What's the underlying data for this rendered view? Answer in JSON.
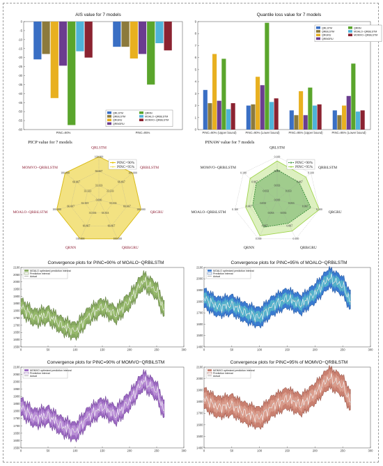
{
  "charts": {
    "ais": {
      "type": "bar",
      "title": "AIS value for 7 models",
      "categories": [
        "PINC=90%",
        "PINC=95%"
      ],
      "ylim": [
        -60,
        0
      ],
      "yticks": [
        "0",
        "-5",
        "-10",
        "-15",
        "-20",
        "-25",
        "-30",
        "-35",
        "-40",
        "-45",
        "-50",
        "-55",
        "-60"
      ],
      "legend": [
        "QRLSTM",
        "QRBiLSTM",
        "QRGRU",
        "QRBiGRU",
        "QRNN",
        "MOALO−QRBiLSTM",
        "MOMVO−QRBiLSTM"
      ],
      "colors": [
        "#3a6fc4",
        "#8c7a3c",
        "#e8b020",
        "#6b3d8f",
        "#5aa52c",
        "#4fb3d9",
        "#8b2331"
      ],
      "series": [
        {
          "name": "QRLSTM",
          "values": [
            -21,
            -14
          ]
        },
        {
          "name": "QRBiLSTM",
          "values": [
            -18,
            -14
          ]
        },
        {
          "name": "QRGRU",
          "values": [
            -42.5,
            -20.5
          ]
        },
        {
          "name": "QRBiGRU",
          "values": [
            -24.5,
            -18
          ]
        },
        {
          "name": "QRNN",
          "values": [
            -57.5,
            -35
          ]
        },
        {
          "name": "MOALO−QRBiLSTM",
          "values": [
            -16.5,
            -12
          ]
        },
        {
          "name": "MOMVO−QRBiLSTM",
          "values": [
            -20,
            -16
          ]
        }
      ]
    },
    "quantile": {
      "type": "bar",
      "title": "Quantile loss value for 7 models",
      "categories": [
        "PINC=90% (Upper bound)",
        "PINC=90% (Lower bound)",
        "PINC=95% (Upper bound)",
        "PINC=95% (Lower bound)"
      ],
      "ylim": [
        0,
        9
      ],
      "yticks": [
        "0",
        "1",
        "2",
        "3",
        "4",
        "5",
        "6",
        "7",
        "8",
        "9"
      ],
      "legend": [
        "QRLSTM",
        "QRBiLSTM",
        "QRGRU",
        "QRBiGRU",
        "QRNN",
        "MOALO−QRBiLSTM",
        "MOMVO−QRBiLSTM"
      ],
      "colors": [
        "#3a6fc4",
        "#8c7a3c",
        "#e8b020",
        "#6b3d8f",
        "#5aa52c",
        "#4fb3d9",
        "#8b2331"
      ],
      "series": [
        {
          "name": "QRLSTM",
          "values": [
            3.3,
            2.0,
            1.6,
            1.6
          ]
        },
        {
          "name": "QRBiLSTM",
          "values": [
            2.2,
            2.1,
            1.2,
            1.2
          ]
        },
        {
          "name": "QRGRU",
          "values": [
            6.3,
            4.4,
            3.2,
            2.0
          ]
        },
        {
          "name": "QRBiGRU",
          "values": [
            2.4,
            3.7,
            1.2,
            2.8
          ]
        },
        {
          "name": "QRNN",
          "values": [
            5.9,
            8.9,
            3.5,
            5.5
          ]
        },
        {
          "name": "MOALO−QRBiLSTM",
          "values": [
            1.7,
            2.3,
            2.0,
            1.5
          ]
        },
        {
          "name": "MOMVO−QRBiLSTM",
          "values": [
            2.2,
            2.6,
            2.1,
            1.6
          ]
        }
      ]
    },
    "picp": {
      "type": "radar",
      "title": "PICP value for 7 models",
      "axes": [
        "QRLSTM",
        "QRBiLSTM",
        "QRGRU",
        "QRBiGRU",
        "QRNN",
        "MOALO−QRBiLSTM",
        "MOMVO−QRBiLSTM"
      ],
      "ring_labels": [
        "0.000",
        "33.333",
        "66.667",
        "100.000"
      ],
      "range": [
        0,
        100
      ],
      "legend": [
        "PINC=90%",
        "PINC=95%"
      ],
      "colors": [
        "#e5c100",
        "#f0e060"
      ],
      "series": [
        {
          "name": "PINC=90%",
          "values": [
            100,
            100,
            100,
            100,
            100,
            100,
            100
          ]
        },
        {
          "name": "PINC=95%",
          "values": [
            100,
            100,
            100,
            100,
            100,
            100,
            100
          ]
        }
      ]
    },
    "pinaw": {
      "type": "radar",
      "title": "PINAW value for 7 models",
      "axes": [
        "QRLSTM",
        "QRBiLSTM",
        "QRGRU",
        "QRBiGRU",
        "QRNN",
        "MOALO−QRBiLSTM",
        "MOMVO−QRBiLSTM"
      ],
      "ring_labels": [
        "0.000",
        "0.033",
        "0.067",
        "0.100"
      ],
      "range": [
        0,
        0.1
      ],
      "legend": [
        "PINC=90%",
        "PINC=95%"
      ],
      "colors": [
        "#2f8a2f",
        "#9fd44a"
      ],
      "series": [
        {
          "name": "PINC=90%",
          "values": [
            0.07,
            0.065,
            0.08,
            0.06,
            0.07,
            0.058,
            0.062
          ]
        },
        {
          "name": "PINC=95%",
          "values": [
            0.09,
            0.085,
            0.1,
            0.08,
            0.092,
            0.075,
            0.08
          ]
        }
      ]
    },
    "conv": [
      {
        "type": "line",
        "title": "Convergence plots for PINC=90% of MOALO−QRBiLSTM",
        "legend": [
          "MOALO optimized prediction interval",
          "Prediction interval",
          "Actual"
        ],
        "fill": "#86a860",
        "fill_edge": "#5f7a40",
        "inner": "#9cc070",
        "half_width": 55,
        "xlim": [
          0,
          300
        ],
        "ylim": [
          1550,
          2100
        ],
        "xticks": [
          "0",
          "50",
          "100",
          "150",
          "200",
          "250",
          "300"
        ],
        "yticks": [
          "1550",
          "1600",
          "1650",
          "1700",
          "1750",
          "1800",
          "1850",
          "1900",
          "1950",
          "2000",
          "2050",
          "2100"
        ]
      },
      {
        "type": "line",
        "title": "Convergence plots for PINC=95% of MOALO−QRBiLSTM",
        "legend": [
          "MOALO optimized prediction interval",
          "Prediction interval",
          "Actual"
        ],
        "fill": "#3a7bd0",
        "fill_edge": "#1f4f9a",
        "inner": "#5fc8c8",
        "half_width": 85,
        "xlim": [
          0,
          300
        ],
        "ylim": [
          1400,
          2100
        ],
        "xticks": [
          "0",
          "50",
          "100",
          "150",
          "200",
          "250",
          "300"
        ],
        "yticks": [
          "1400",
          "1500",
          "1600",
          "1700",
          "1800",
          "1900",
          "2000",
          "2100"
        ]
      },
      {
        "type": "line",
        "title": "Convergence plots for PINC=90% of MOMVO−QRBiLSTM",
        "legend": [
          "MOMVO optimized prediction interval",
          "Prediction interval",
          "Actual"
        ],
        "fill": "#9a68c0",
        "fill_edge": "#6e3f95",
        "inner": "#c8a0e0",
        "half_width": 60,
        "xlim": [
          0,
          300
        ],
        "ylim": [
          1550,
          2100
        ],
        "xticks": [
          "0",
          "50",
          "100",
          "150",
          "200",
          "250",
          "300"
        ],
        "yticks": [
          "1550",
          "1600",
          "1650",
          "1700",
          "1750",
          "1800",
          "1850",
          "1900",
          "1950",
          "2000",
          "2050",
          "2100"
        ]
      },
      {
        "type": "line",
        "title": "Convergence plots for PINC=95% of MOMVO−QRBiLSTM",
        "legend": [
          "MOMVO optimized prediction interval",
          "Prediction interval",
          "Actual"
        ],
        "fill": "#c98070",
        "fill_edge": "#8f4a3e",
        "inner": "#e0a898",
        "half_width": 90,
        "xlim": [
          0,
          300
        ],
        "ylim": [
          1400,
          2100
        ],
        "xticks": [
          "0",
          "50",
          "100",
          "150",
          "200",
          "250",
          "300"
        ],
        "yticks": [
          "1400",
          "1500",
          "1600",
          "1700",
          "1800",
          "1900",
          "2000",
          "2100"
        ]
      }
    ]
  },
  "chart_data": [
    {
      "type": "bar",
      "title": "AIS value for 7 models",
      "categories": [
        "PINC=90%",
        "PINC=95%"
      ],
      "ylim": [
        -60,
        0
      ],
      "series": [
        {
          "name": "QRLSTM",
          "values": [
            -21,
            -14
          ]
        },
        {
          "name": "QRBiLSTM",
          "values": [
            -18,
            -14
          ]
        },
        {
          "name": "QRGRU",
          "values": [
            -42.5,
            -20.5
          ]
        },
        {
          "name": "QRBiGRU",
          "values": [
            -24.5,
            -18
          ]
        },
        {
          "name": "QRNN",
          "values": [
            -57.5,
            -35
          ]
        },
        {
          "name": "MOALO−QRBiLSTM",
          "values": [
            -16.5,
            -12
          ]
        },
        {
          "name": "MOMVO−QRBiLSTM",
          "values": [
            -20,
            -16
          ]
        }
      ]
    },
    {
      "type": "bar",
      "title": "Quantile loss value for 7 models",
      "categories": [
        "PINC=90% (Upper bound)",
        "PINC=90% (Lower bound)",
        "PINC=95% (Upper bound)",
        "PINC=95% (Lower bound)"
      ],
      "ylim": [
        0,
        9
      ],
      "series": [
        {
          "name": "QRLSTM",
          "values": [
            3.3,
            2.0,
            1.6,
            1.6
          ]
        },
        {
          "name": "QRBiLSTM",
          "values": [
            2.2,
            2.1,
            1.2,
            1.2
          ]
        },
        {
          "name": "QRGRU",
          "values": [
            6.3,
            4.4,
            3.2,
            2.0
          ]
        },
        {
          "name": "QRBiGRU",
          "values": [
            2.4,
            3.7,
            1.2,
            2.8
          ]
        },
        {
          "name": "QRNN",
          "values": [
            5.9,
            8.9,
            3.5,
            5.5
          ]
        },
        {
          "name": "MOALO−QRBiLSTM",
          "values": [
            1.7,
            2.3,
            2.0,
            1.5
          ]
        },
        {
          "name": "MOMVO−QRBiLSTM",
          "values": [
            2.2,
            2.6,
            2.1,
            1.6
          ]
        }
      ]
    },
    {
      "type": "radar",
      "title": "PICP value for 7 models",
      "axes": [
        "QRLSTM",
        "QRBiLSTM",
        "QRGRU",
        "QRBiGRU",
        "QRNN",
        "MOALO−QRBiLSTM",
        "MOMVO−QRBiLSTM"
      ],
      "series": [
        {
          "name": "PINC=90%",
          "values": [
            100,
            100,
            100,
            100,
            100,
            100,
            100
          ]
        },
        {
          "name": "PINC=95%",
          "values": [
            100,
            100,
            100,
            100,
            100,
            100,
            100
          ]
        }
      ]
    },
    {
      "type": "radar",
      "title": "PINAW value for 7 models",
      "axes": [
        "QRLSTM",
        "QRBiLSTM",
        "QRGRU",
        "QRBiGRU",
        "QRNN",
        "MOALO−QRBiLSTM",
        "MOMVO−QRBiLSTM"
      ],
      "series": [
        {
          "name": "PINC=90%",
          "values": [
            0.07,
            0.065,
            0.08,
            0.06,
            0.07,
            0.058,
            0.062
          ]
        },
        {
          "name": "PINC=95%",
          "values": [
            0.09,
            0.085,
            0.1,
            0.08,
            0.092,
            0.075,
            0.08
          ]
        }
      ]
    },
    {
      "type": "line",
      "title": "Convergence plots for PINC=90% of MOALO−QRBiLSTM",
      "xlim": [
        0,
        300
      ],
      "ylim": [
        1550,
        2100
      ],
      "series": [
        {
          "name": "Actual",
          "x": [
            0,
            25,
            50,
            75,
            100,
            125,
            150,
            175,
            200,
            225,
            250,
            265
          ],
          "y": [
            1830,
            1760,
            1780,
            1700,
            1650,
            1760,
            1830,
            1780,
            1880,
            2010,
            1930,
            1780
          ]
        }
      ]
    },
    {
      "type": "line",
      "title": "Convergence plots for PINC=95% of MOALO−QRBiLSTM",
      "xlim": [
        0,
        300
      ],
      "ylim": [
        1400,
        2100
      ],
      "series": [
        {
          "name": "Actual",
          "x": [
            0,
            25,
            50,
            75,
            100,
            125,
            150,
            175,
            200,
            225,
            250,
            265
          ],
          "y": [
            1830,
            1760,
            1780,
            1700,
            1650,
            1760,
            1830,
            1780,
            1880,
            2010,
            1930,
            1780
          ]
        }
      ]
    },
    {
      "type": "line",
      "title": "Convergence plots for PINC=90% of MOMVO−QRBiLSTM",
      "xlim": [
        0,
        300
      ],
      "ylim": [
        1550,
        2100
      ],
      "series": [
        {
          "name": "Actual",
          "x": [
            0,
            25,
            50,
            75,
            100,
            125,
            150,
            175,
            200,
            225,
            250,
            265
          ],
          "y": [
            1830,
            1760,
            1780,
            1700,
            1650,
            1760,
            1830,
            1780,
            1880,
            2010,
            1930,
            1780
          ]
        }
      ]
    },
    {
      "type": "line",
      "title": "Convergence plots for PINC=95% of MOMVO−QRBiLSTM",
      "xlim": [
        0,
        300
      ],
      "ylim": [
        1400,
        2100
      ],
      "series": [
        {
          "name": "Actual",
          "x": [
            0,
            25,
            50,
            75,
            100,
            125,
            150,
            175,
            200,
            225,
            250,
            265
          ],
          "y": [
            1830,
            1760,
            1780,
            1700,
            1650,
            1760,
            1830,
            1780,
            1880,
            2010,
            1930,
            1780
          ]
        }
      ]
    }
  ]
}
